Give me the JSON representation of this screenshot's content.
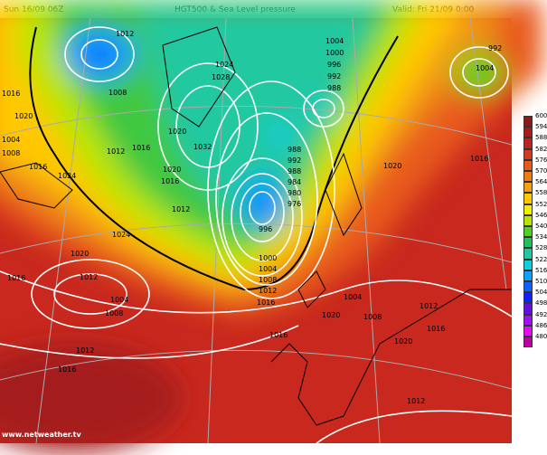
{
  "header": {
    "run": "Sun 16/09 06Z",
    "title": "HGT500 & Sea Level pressure",
    "valid": "Valid: Fri 21/09 0:00"
  },
  "footer": {
    "credit": "www.netweather.tv"
  },
  "colorbar": {
    "levels": [
      "600",
      "594",
      "588",
      "582",
      "576",
      "570",
      "564",
      "558",
      "552",
      "546",
      "540",
      "534",
      "528",
      "522",
      "516",
      "510",
      "504",
      "498",
      "492",
      "486",
      "480"
    ],
    "colors": [
      "#8b1a1a",
      "#a51c1c",
      "#bb2222",
      "#d23a22",
      "#e65a1e",
      "#f07a18",
      "#f5a012",
      "#ffc800",
      "#f0f000",
      "#b8e600",
      "#50d020",
      "#20c060",
      "#20c8a0",
      "#10d0e0",
      "#10a0ff",
      "#1060ff",
      "#1020ff",
      "#6010e0",
      "#a010f0",
      "#e010f0",
      "#c000a0"
    ]
  },
  "pressure_labels": [
    "1012",
    "1008",
    "1016",
    "1020",
    "1004",
    "1008",
    "1024",
    "1016",
    "1016",
    "1012",
    "1020",
    "1024",
    "1028",
    "1032",
    "1020",
    "1016",
    "1012",
    "1004",
    "1000",
    "996",
    "992",
    "988",
    "988",
    "992",
    "988",
    "984",
    "980",
    "976",
    "996",
    "1000",
    "1004",
    "1008",
    "1012",
    "1016",
    "1020",
    "1024",
    "1020",
    "1012",
    "1016",
    "1004",
    "1008",
    "1012",
    "1016",
    "1004",
    "992",
    "1016",
    "1020",
    "1016",
    "1020",
    "1012",
    "1004",
    "1008",
    "1016",
    "1012"
  ]
}
